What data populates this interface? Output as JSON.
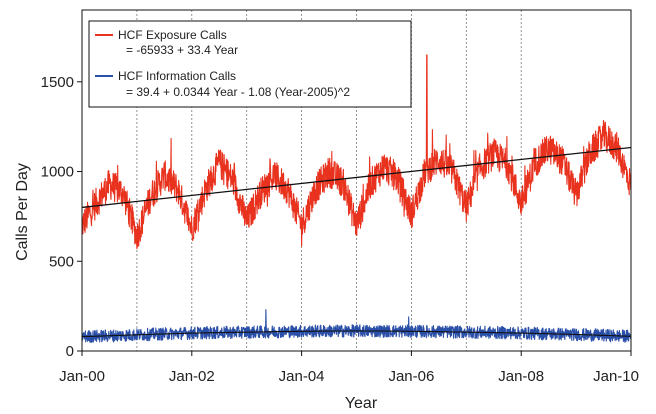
{
  "chart_data": {
    "type": "line",
    "xlabel": "Year",
    "ylabel": "Calls Per Day",
    "x_range": [
      "2000-01",
      "2010-01"
    ],
    "ylim": [
      0,
      1900
    ],
    "yticks": [
      0,
      500,
      1000,
      1500
    ],
    "xticks": [
      {
        "year": 2000,
        "label": "Jan-00"
      },
      {
        "year": 2002,
        "label": "Jan-02"
      },
      {
        "year": 2004,
        "label": "Jan-04"
      },
      {
        "year": 2006,
        "label": "Jan-06"
      },
      {
        "year": 2008,
        "label": "Jan-08"
      },
      {
        "year": 2010,
        "label": "Jan-10"
      }
    ],
    "vertical_gridlines_years": [
      2001,
      2002,
      2003,
      2004,
      2005,
      2006,
      2007,
      2008
    ],
    "legend_position": "top-left",
    "series": [
      {
        "name": "HCF Exposure Calls",
        "equation": "= -65933 + 33.4 Year",
        "color": "#e8321e",
        "trend": [
          {
            "year": 2000,
            "value": 800
          },
          {
            "year": 2010,
            "value": 1134
          }
        ],
        "monthly_values": [
          {
            "year": 2000.0,
            "value": 700
          },
          {
            "year": 2000.25,
            "value": 820
          },
          {
            "year": 2000.5,
            "value": 930
          },
          {
            "year": 2000.75,
            "value": 880
          },
          {
            "year": 2001.0,
            "value": 640
          },
          {
            "year": 2001.25,
            "value": 860
          },
          {
            "year": 2001.5,
            "value": 980
          },
          {
            "year": 2001.75,
            "value": 900
          },
          {
            "year": 2002.0,
            "value": 680
          },
          {
            "year": 2002.25,
            "value": 900
          },
          {
            "year": 2002.5,
            "value": 1050
          },
          {
            "year": 2002.75,
            "value": 950
          },
          {
            "year": 2003.0,
            "value": 720
          },
          {
            "year": 2003.25,
            "value": 880
          },
          {
            "year": 2003.5,
            "value": 980
          },
          {
            "year": 2003.75,
            "value": 900
          },
          {
            "year": 2004.0,
            "value": 700
          },
          {
            "year": 2004.25,
            "value": 900
          },
          {
            "year": 2004.5,
            "value": 1000
          },
          {
            "year": 2004.75,
            "value": 940
          },
          {
            "year": 2005.0,
            "value": 700
          },
          {
            "year": 2005.25,
            "value": 930
          },
          {
            "year": 2005.5,
            "value": 1030
          },
          {
            "year": 2005.75,
            "value": 960
          },
          {
            "year": 2006.0,
            "value": 760
          },
          {
            "year": 2006.25,
            "value": 1000
          },
          {
            "year": 2006.5,
            "value": 1070
          },
          {
            "year": 2006.75,
            "value": 1000
          },
          {
            "year": 2007.0,
            "value": 800
          },
          {
            "year": 2007.25,
            "value": 1020
          },
          {
            "year": 2007.5,
            "value": 1100
          },
          {
            "year": 2007.75,
            "value": 1040
          },
          {
            "year": 2008.0,
            "value": 820
          },
          {
            "year": 2008.25,
            "value": 1050
          },
          {
            "year": 2008.5,
            "value": 1130
          },
          {
            "year": 2008.75,
            "value": 1060
          },
          {
            "year": 2009.0,
            "value": 870
          },
          {
            "year": 2009.25,
            "value": 1100
          },
          {
            "year": 2009.5,
            "value": 1200
          },
          {
            "year": 2009.75,
            "value": 1130
          },
          {
            "year": 2010.0,
            "value": 920
          }
        ],
        "peaks": [
          {
            "year": 2006.28,
            "value": 1650
          }
        ]
      },
      {
        "name": "HCF Information Calls",
        "equation": "= 39.4 + 0.0344 Year - 1.08 (Year-2005)^2",
        "color": "#2a4fa8",
        "trend_formula": "39.4 + 0.0344 Year - 1.08 (Year-2005)^2",
        "level_values": [
          {
            "year": 2000.0,
            "value": 80
          },
          {
            "year": 2001.0,
            "value": 90
          },
          {
            "year": 2002.0,
            "value": 100
          },
          {
            "year": 2003.0,
            "value": 105
          },
          {
            "year": 2004.0,
            "value": 110
          },
          {
            "year": 2005.0,
            "value": 112
          },
          {
            "year": 2006.0,
            "value": 110
          },
          {
            "year": 2007.0,
            "value": 105
          },
          {
            "year": 2008.0,
            "value": 100
          },
          {
            "year": 2009.0,
            "value": 92
          },
          {
            "year": 2010.0,
            "value": 82
          }
        ],
        "peaks": [
          {
            "year": 2003.35,
            "value": 230
          },
          {
            "year": 2005.95,
            "value": 190
          }
        ]
      }
    ]
  }
}
